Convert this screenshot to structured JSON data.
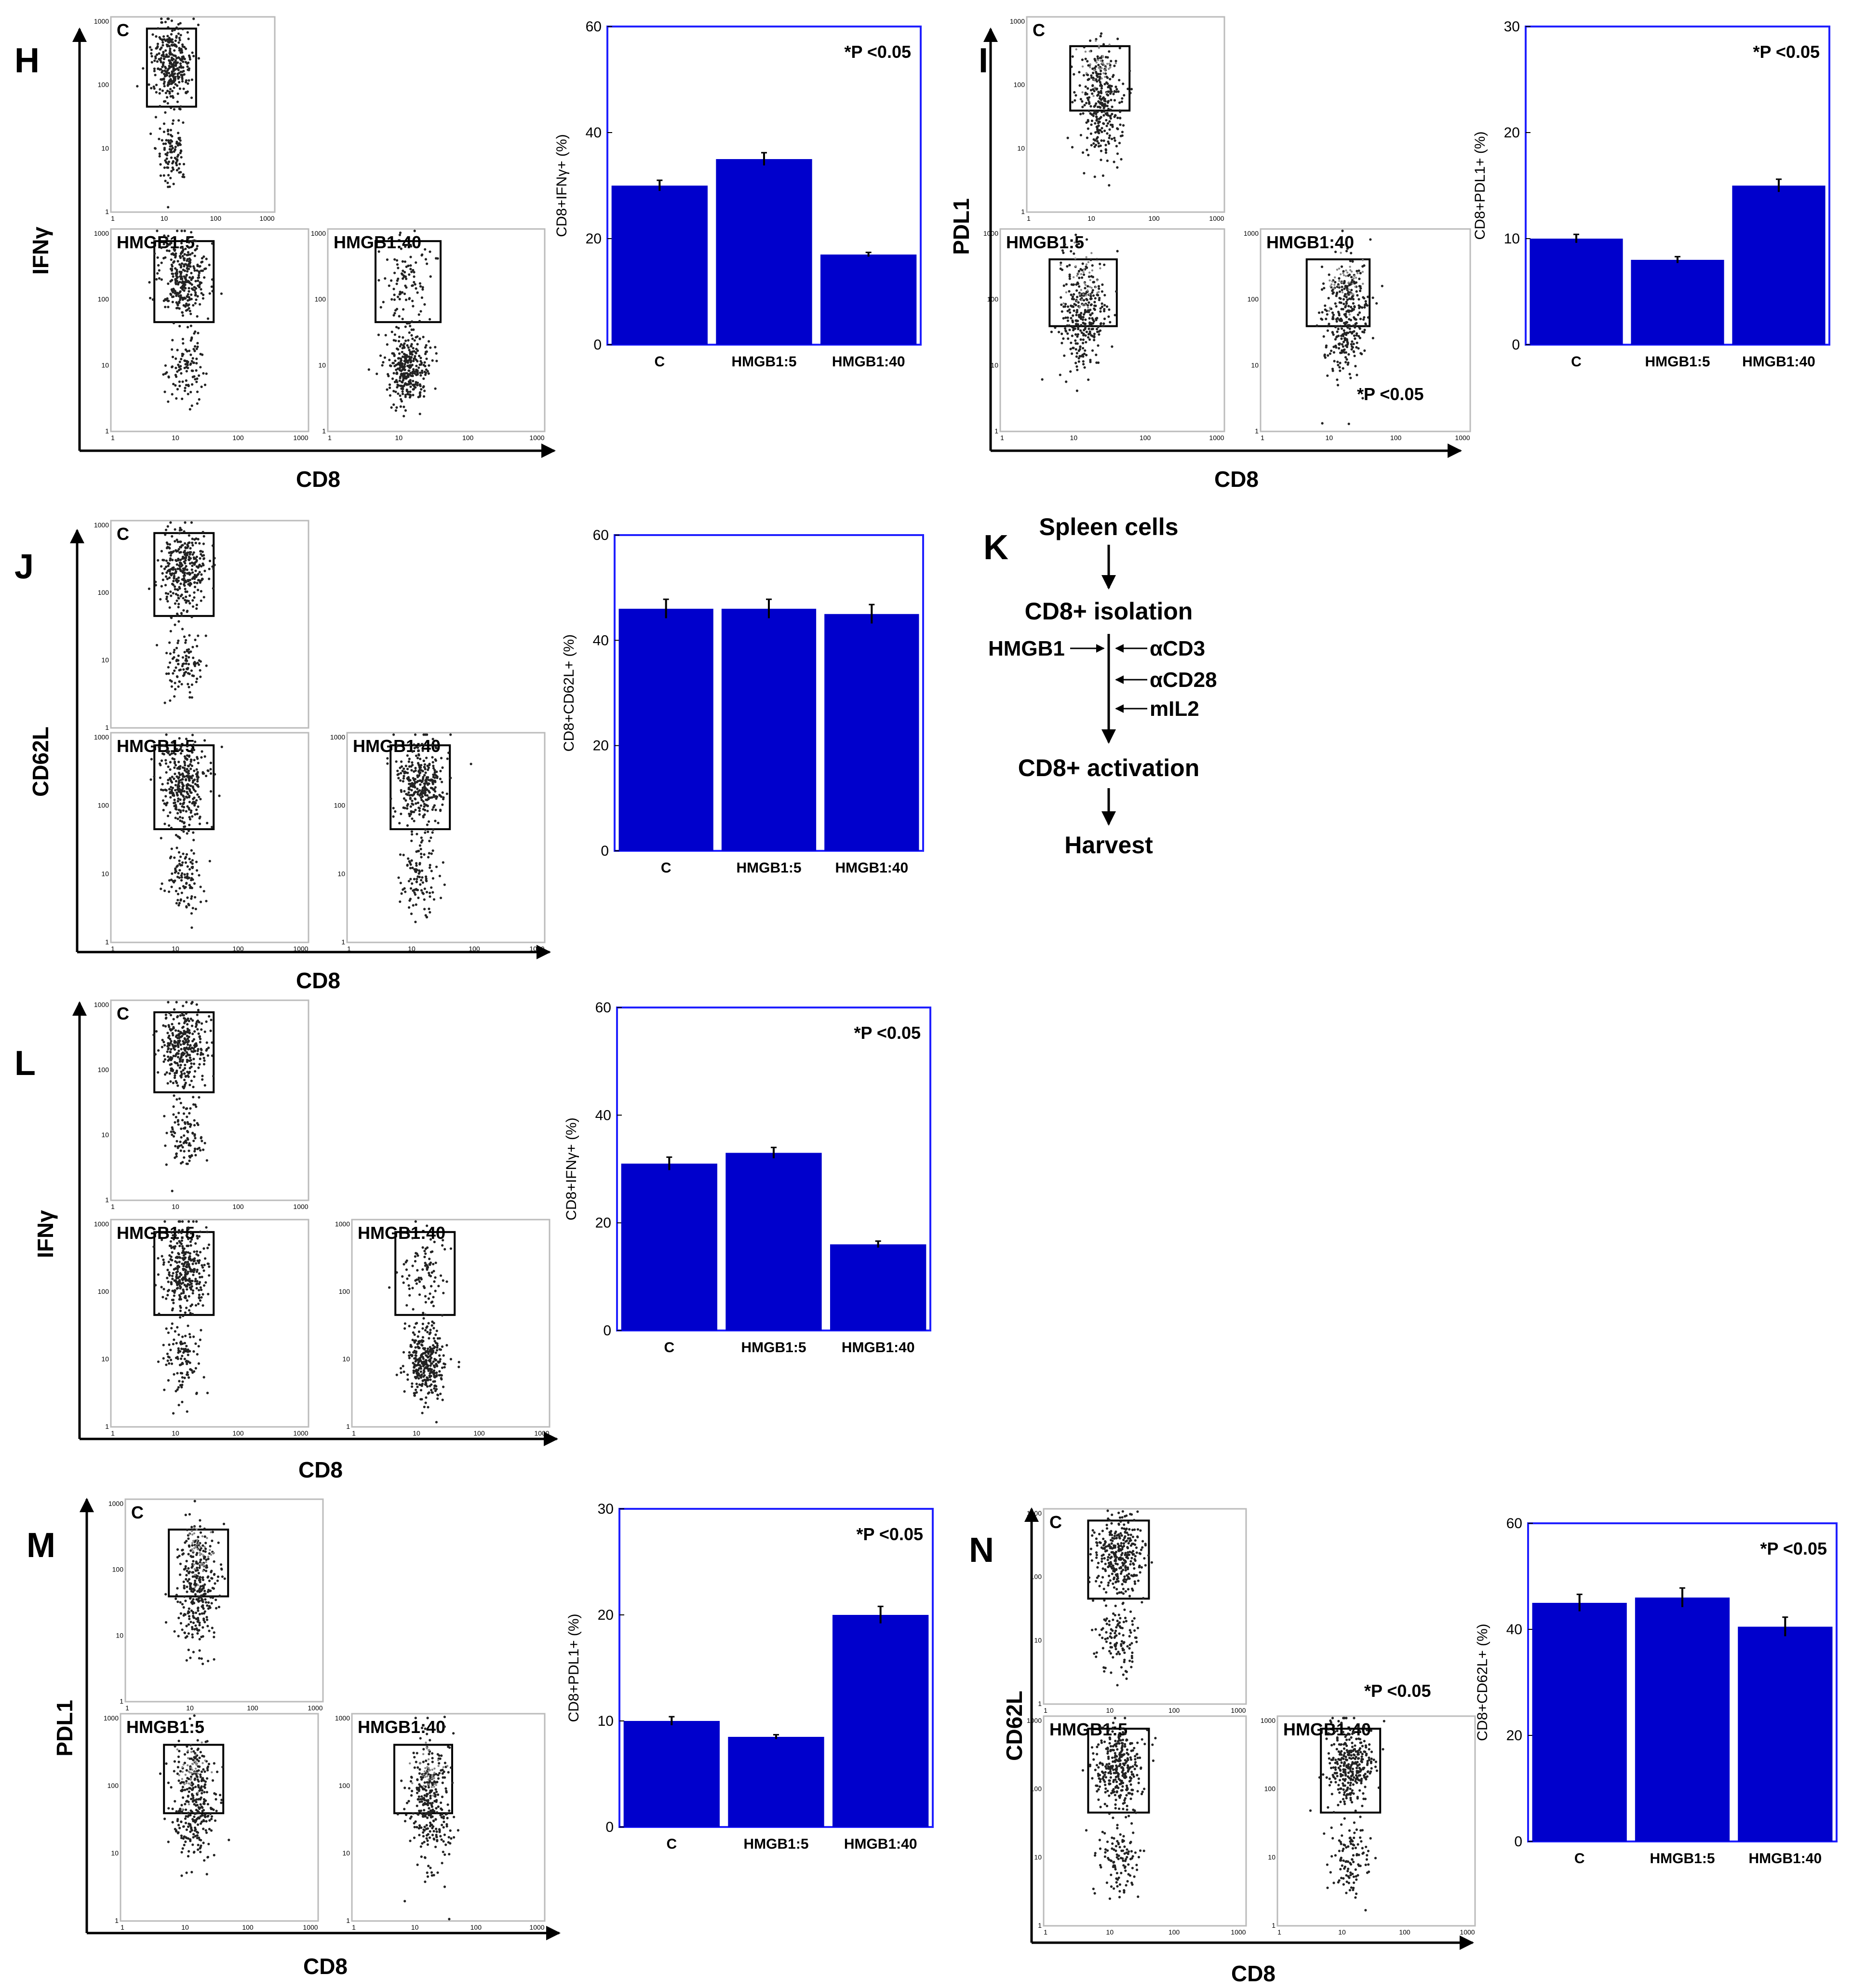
{
  "colors": {
    "bar": "#0000cc",
    "frame_blue": "#2020ff",
    "ink": "#000000"
  },
  "panels": [
    {
      "id": "H",
      "label": "H",
      "y_axis": "IFNγ",
      "x_axis": "CD8",
      "flow_plots": [
        "C",
        "HMGB1:5",
        "HMGB1:40"
      ],
      "flow_ticks": [
        "1",
        "10",
        "100",
        "1000"
      ],
      "gates": "high",
      "pval": "*P <0.05"
    },
    {
      "id": "I",
      "label": "I",
      "y_axis": "PDL1",
      "x_axis": "CD8",
      "flow_plots": [
        "C",
        "HMGB1:5",
        "HMGB1:40"
      ],
      "flow_ticks": [
        "1",
        "10",
        "100",
        "1000"
      ],
      "gates": "mid",
      "pval": "*P <0.05",
      "flow_pval": "*P <0.05"
    },
    {
      "id": "J",
      "label": "J",
      "y_axis": "CD62L",
      "x_axis": "CD8",
      "flow_plots": [
        "C",
        "HMGB1:5",
        "HMGB1:40"
      ],
      "flow_ticks": [
        "1",
        "10",
        "100",
        "1000"
      ],
      "gates": "high"
    },
    {
      "id": "L",
      "label": "L",
      "y_axis": "IFNγ",
      "x_axis": "CD8",
      "flow_plots": [
        "C",
        "HMGB1:5",
        "HMGB1:40"
      ],
      "flow_ticks": [
        "1",
        "10",
        "100",
        "1000"
      ],
      "gates": "high",
      "pval": "*P <0.05"
    },
    {
      "id": "M",
      "label": "M",
      "y_axis": "PDL1",
      "x_axis": "CD8",
      "flow_plots": [
        "C",
        "HMGB1:5",
        "HMGB1:40"
      ],
      "flow_ticks": [
        "1",
        "10",
        "100",
        "1000"
      ],
      "gates": "mid",
      "pval": "*P <0.05"
    },
    {
      "id": "N",
      "label": "N",
      "y_axis": "CD62L",
      "x_axis": "CD8",
      "flow_plots": [
        "C",
        "HMGB1:5",
        "HMGB1:40"
      ],
      "flow_ticks": [
        "1",
        "10",
        "100",
        "1000"
      ],
      "gates": "high",
      "pval": "*P <0.05",
      "flow_pval": "*P <0.05"
    }
  ],
  "chart_data": [
    {
      "panel": "H",
      "type": "bar",
      "categories": [
        "C",
        "HMGB1:5",
        "HMGB1:40"
      ],
      "values": [
        30,
        35,
        17
      ],
      "errors": [
        1,
        1.2,
        0.4
      ],
      "ylabel": "CD8+IFNγ+ (%)",
      "ylim": [
        0,
        60
      ],
      "yticks": [
        0,
        20,
        40,
        60
      ],
      "annotation": "*P <0.05"
    },
    {
      "panel": "I",
      "type": "bar",
      "categories": [
        "C",
        "HMGB1:5",
        "HMGB1:40"
      ],
      "values": [
        10,
        8,
        15
      ],
      "errors": [
        0.4,
        0.3,
        0.6
      ],
      "ylabel": "CD8+PDL1+ (%)",
      "ylim": [
        0,
        30
      ],
      "yticks": [
        0,
        10,
        20,
        30
      ],
      "annotation": "*P <0.05"
    },
    {
      "panel": "J",
      "type": "bar",
      "categories": [
        "C",
        "HMGB1:5",
        "HMGB1:40"
      ],
      "values": [
        46,
        46,
        45
      ],
      "errors": [
        1.8,
        1.8,
        1.8
      ],
      "ylabel": "CD8+CD62L+ (%)",
      "ylim": [
        0,
        60
      ],
      "yticks": [
        0,
        20,
        40,
        60
      ]
    },
    {
      "panel": "L",
      "type": "bar",
      "categories": [
        "C",
        "HMGB1:5",
        "HMGB1:40"
      ],
      "values": [
        31,
        33,
        16
      ],
      "errors": [
        1.2,
        1.0,
        0.6
      ],
      "ylabel": "CD8+IFNγ+ (%)",
      "ylim": [
        0,
        60
      ],
      "yticks": [
        0,
        20,
        40,
        60
      ],
      "annotation": "*P <0.05"
    },
    {
      "panel": "M",
      "type": "bar",
      "categories": [
        "C",
        "HMGB1:5",
        "HMGB1:40"
      ],
      "values": [
        10,
        8.5,
        20
      ],
      "errors": [
        0.4,
        0.2,
        0.8
      ],
      "ylabel": "CD8+PDL1+ (%)",
      "ylim": [
        0,
        30
      ],
      "yticks": [
        0,
        10,
        20,
        30
      ],
      "annotation": "*P <0.05"
    },
    {
      "panel": "N",
      "type": "bar",
      "categories": [
        "C",
        "HMGB1:5",
        "HMGB1:40"
      ],
      "values": [
        45,
        46,
        40.5
      ],
      "errors": [
        1.6,
        1.8,
        1.8
      ],
      "ylabel": "CD8+CD62L+ (%)",
      "ylim": [
        0,
        60
      ],
      "yticks": [
        0,
        20,
        40,
        60
      ],
      "annotation": "*P <0.05"
    }
  ],
  "flowchart": {
    "label": "K",
    "steps": [
      "Spleen cells",
      "CD8+ isolation",
      "CD8+ activation",
      "Harvest"
    ],
    "input": "HMGB1",
    "stimuli": [
      "αCD3",
      "αCD28",
      "mIL2"
    ]
  }
}
